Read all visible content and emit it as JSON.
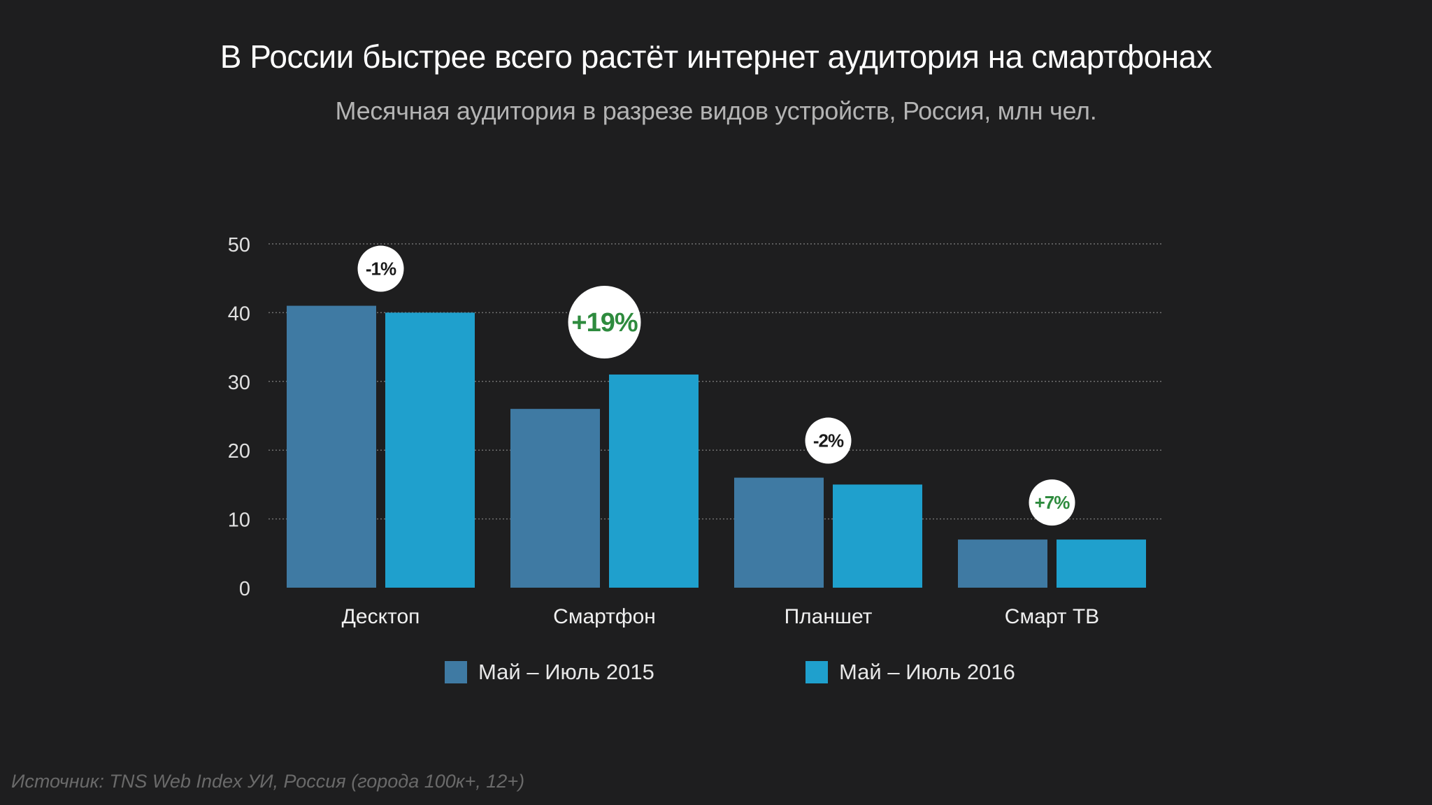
{
  "title": "В России быстрее всего растёт интернет аудитория на смартфонах",
  "subtitle": "Месячная аудитория в разрезе видов устройств, Россия, млн чел.",
  "source": "Источник: TNS Web Index УИ, Россия (города 100к+, 12+)",
  "colors": {
    "background": "#1e1e1f",
    "series_2015": "#3f7aa3",
    "series_2016": "#1fa0cd",
    "badge_bg": "#ffffff",
    "badge_positive": "#2e8b3e",
    "badge_negative": "#1a1a1a"
  },
  "chart_data": {
    "type": "bar",
    "title": "В России быстрее всего растёт интернет аудитория на смартфонах",
    "subtitle": "Месячная аудитория в разрезе видов устройств, Россия, млн чел.",
    "categories": [
      "Десктоп",
      "Смартфон",
      "Планшет",
      "Смарт ТВ"
    ],
    "series": [
      {
        "name": "Май – Июль  2015",
        "values": [
          41,
          26,
          16,
          7
        ]
      },
      {
        "name": "Май – Июль 2016",
        "values": [
          40,
          31,
          15,
          7
        ]
      }
    ],
    "change_labels": [
      "-1%",
      "+19%",
      "-2%",
      "+7%"
    ],
    "yticks": [
      0,
      10,
      20,
      30,
      40,
      50
    ],
    "ylim": [
      0,
      50
    ],
    "grid": true,
    "legend_position": "bottom"
  }
}
